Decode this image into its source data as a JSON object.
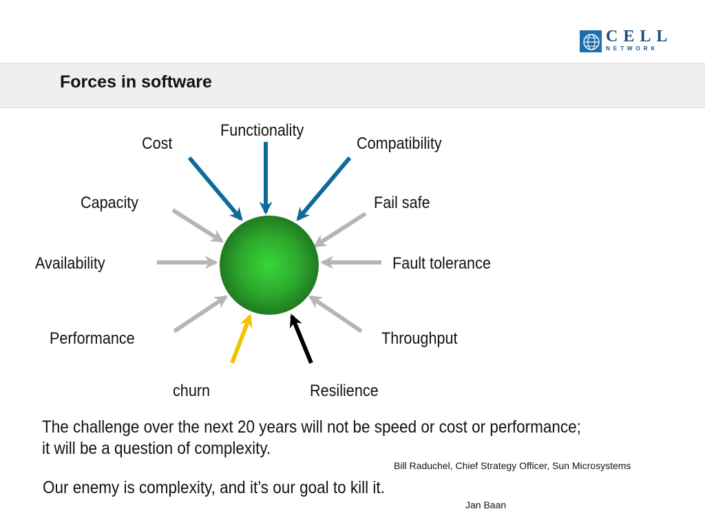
{
  "logo": {
    "wordmark_top": "CELL",
    "wordmark_bottom": "NETWORK",
    "color": "#1b4d80"
  },
  "header": {
    "title": "Forces in software"
  },
  "diagram": {
    "center": "green-sphere",
    "colors": {
      "blue": "#0e6a9b",
      "gray": "#b5b5b5",
      "yellow": "#f2c300",
      "black": "#000000",
      "sphere": "#2a8a2a"
    },
    "forces": [
      {
        "label": "Functionality",
        "color": "blue"
      },
      {
        "label": "Cost",
        "color": "blue"
      },
      {
        "label": "Compatibility",
        "color": "blue"
      },
      {
        "label": "Capacity",
        "color": "gray"
      },
      {
        "label": "Fail safe",
        "color": "gray"
      },
      {
        "label": "Availability",
        "color": "gray"
      },
      {
        "label": "Fault tolerance",
        "color": "gray"
      },
      {
        "label": "Performance",
        "color": "gray"
      },
      {
        "label": "Throughput",
        "color": "gray"
      },
      {
        "label": "churn",
        "color": "yellow"
      },
      {
        "label": "Resilience",
        "color": "black"
      }
    ]
  },
  "quotes": [
    {
      "line1": "The challenge over the next 20 years will not be speed or cost or performance;",
      "line2": "it will be a question of complexity.",
      "attribution": "Bill Raduchel, Chief Strategy Officer, Sun Microsystems"
    },
    {
      "text": "Our enemy is complexity, and it’s our goal to kill it.",
      "attribution": "Jan Baan"
    }
  ]
}
